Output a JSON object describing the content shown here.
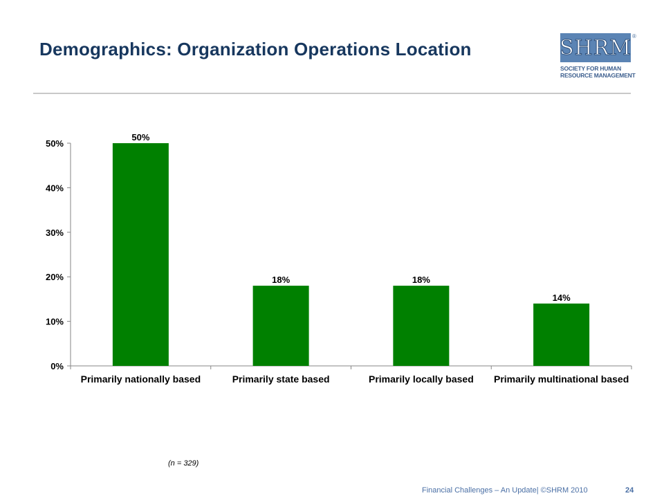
{
  "slide": {
    "title": "Demographics: Organization Operations Location",
    "note": "(n = 329)",
    "footer": "Financial Challenges – An Update| ©SHRM 2010",
    "page_number": "24"
  },
  "logo": {
    "letters": "SHRM",
    "reg_mark": "®",
    "line1": "SOCIETY FOR HUMAN",
    "line2": "RESOURCE MANAGEMENT",
    "color": "#5b84b4"
  },
  "chart_data": {
    "type": "bar",
    "categories": [
      "Primarily nationally based",
      "Primarily state based",
      "Primarily locally based",
      "Primarily multinational based"
    ],
    "values": [
      50,
      18,
      18,
      14
    ],
    "data_labels": [
      "50%",
      "18%",
      "18%",
      "14%"
    ],
    "y_ticks": [
      "0%",
      "10%",
      "20%",
      "30%",
      "40%",
      "50%"
    ],
    "ylim": [
      0,
      50
    ],
    "bar_color": "#008000",
    "grid": false
  }
}
